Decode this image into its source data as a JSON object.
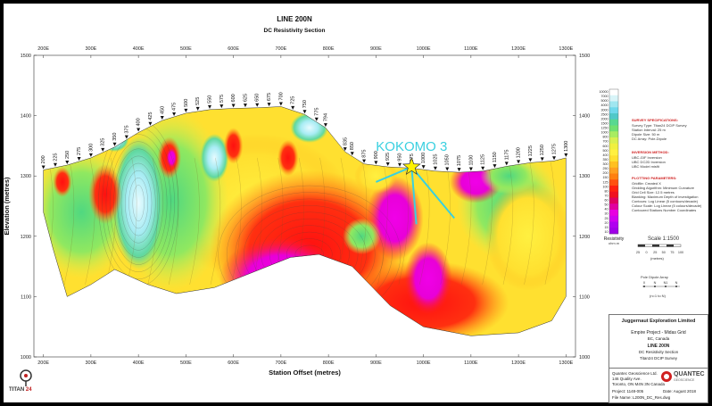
{
  "chart_data": {
    "type": "heatmap",
    "title": "LINE 200N",
    "subtitle": "DC Resistivity Section",
    "xlabel": "Station Offset (metres)",
    "ylabel": "Elevation (metres)",
    "x_ticks": [
      "200E",
      "300E",
      "400E",
      "500E",
      "600E",
      "700E",
      "800E",
      "900E",
      "1000E",
      "1100E",
      "1200E",
      "1300E"
    ],
    "y_ticks": [
      "1000",
      "1100",
      "1200",
      "1300",
      "1400",
      "1500"
    ],
    "xlim": [
      180,
      1320
    ],
    "ylim": [
      1000,
      1500
    ],
    "stations": [
      "200",
      "225",
      "250",
      "275",
      "300",
      "325",
      "350",
      "375",
      "400",
      "425",
      "450",
      "475",
      "500",
      "525",
      "550",
      "575",
      "600",
      "625",
      "650",
      "675",
      "700",
      "725",
      "750",
      "775",
      "794",
      "835",
      "850",
      "875",
      "900",
      "925",
      "950",
      "975",
      "1000",
      "1025",
      "1050",
      "1075",
      "1100",
      "1125",
      "1150",
      "1175",
      "1200",
      "1225",
      "1250",
      "1275",
      "1300"
    ],
    "topography": [
      {
        "x": 200,
        "y": 1310
      },
      {
        "x": 250,
        "y": 1318
      },
      {
        "x": 300,
        "y": 1330
      },
      {
        "x": 350,
        "y": 1348
      },
      {
        "x": 400,
        "y": 1372
      },
      {
        "x": 450,
        "y": 1392
      },
      {
        "x": 500,
        "y": 1404
      },
      {
        "x": 550,
        "y": 1410
      },
      {
        "x": 600,
        "y": 1412
      },
      {
        "x": 650,
        "y": 1413
      },
      {
        "x": 700,
        "y": 1415
      },
      {
        "x": 750,
        "y": 1402
      },
      {
        "x": 794,
        "y": 1380
      },
      {
        "x": 835,
        "y": 1340
      },
      {
        "x": 875,
        "y": 1320
      },
      {
        "x": 925,
        "y": 1315
      },
      {
        "x": 975,
        "y": 1313
      },
      {
        "x": 1025,
        "y": 1308
      },
      {
        "x": 1075,
        "y": 1306
      },
      {
        "x": 1125,
        "y": 1308
      },
      {
        "x": 1175,
        "y": 1316
      },
      {
        "x": 1225,
        "y": 1322
      },
      {
        "x": 1275,
        "y": 1325
      },
      {
        "x": 1300,
        "y": 1330
      }
    ],
    "annotation": {
      "text": "KOKOMO 3",
      "x": 975,
      "y": 1315,
      "symbol": "star"
    },
    "drillholes": [
      {
        "from": [
          975,
          1315
        ],
        "to": [
          900,
          1290
        ]
      },
      {
        "from": [
          975,
          1315
        ],
        "to": [
          985,
          1220
        ]
      },
      {
        "from": [
          975,
          1315
        ],
        "to": [
          1065,
          1230
        ]
      }
    ],
    "resistivity_colorbar_label": "Resistivity",
    "resistivity_colorbar_unit": "ohm.m",
    "resistivity_colorbar_values": [
      "10000",
      "7000",
      "5000",
      "4000",
      "3000",
      "2500",
      "2000",
      "1500",
      "1250",
      "1000",
      "800",
      "700",
      "600",
      "500",
      "400",
      "350",
      "300",
      "250",
      "200",
      "150",
      "125",
      "100",
      "80",
      "70",
      "60",
      "50",
      "40",
      "30",
      "25",
      "20",
      "15",
      "10"
    ],
    "colorbar_colors": [
      "#ffffff",
      "#d8f4f8",
      "#a0e6f0",
      "#70d8ec",
      "#50c8c8",
      "#58d890",
      "#70e070",
      "#a8ec60",
      "#d8f050",
      "#f0f040",
      "#fff040",
      "#ffe030",
      "#ffc020",
      "#ffa020",
      "#ff8010",
      "#ff5010",
      "#ff2010",
      "#f01020",
      "#e00060",
      "#e000a0",
      "#e800e0",
      "#d000f0",
      "#b000f0",
      "#a000e8"
    ]
  },
  "legend_panel": {
    "survey_heading": "SURVEY SPECIFICATIONS:",
    "survey_lines": [
      "Survey Type: Titan24 DCIP Survey",
      "Station Interval: 25 m",
      "Dipole Size: 50 m",
      "DC Array: Pole-Dipole"
    ],
    "inversion_heading": "INVERSION METHOD:",
    "inversion_lines": [
      "UBC-GIF Inversion",
      "UBC DC2D Inversion",
      "UBC Model misfit"
    ],
    "plotting_heading": "PLOTTING PARAMETERS:",
    "plotting_lines": [
      "Gridfile: Created X",
      "Gridding Algorithm: Minimum Curvature",
      "Grid Cell Size: 12.5 metres",
      "Blanking: Maximum Depth of investigation",
      "Contours: Log Linear (5 contours/decade)",
      "Colour Scale: Log Linear (5 colours/decade)",
      "Contoured Stations Number Coordinates"
    ],
    "scale_label": "Scale 1:1500",
    "scale_ticks": [
      "25",
      "0",
      "25",
      "50",
      "75",
      "100"
    ],
    "scale_unit": "(metres)",
    "pole_label": "Pole Dipole Array",
    "pole_ticks": [
      "X",
      "N",
      "N1",
      "N"
    ],
    "pole_unit": "(n=1 to N)"
  },
  "title_block": {
    "company": "Juggernaut Exploration Limited",
    "project": "Empire Project - Midas Grid",
    "location": "BC, Canada",
    "line": "LINE 200N",
    "section": "DC Resistivity Section",
    "survey": "Titan24 DCIP Survey",
    "contractor_name": "Quantec Geoscience Ltd.",
    "contractor_address": "146 Quality Ave.",
    "contractor_city": "Toronto, ON M4N 3N Canada",
    "project_no": "Project: 1148-005",
    "date": "Date: August 2018",
    "file_name": "File Name: L200N_DC_Res.dwg",
    "quantec_logo": "QUANTEC",
    "quantec_sub": "GEOSCIENCE"
  },
  "titan_logo": {
    "text": "TITAN",
    "number": "24"
  },
  "colors": {
    "accent_cyan": "#3ad0e0",
    "star_fill": "#fff200"
  }
}
